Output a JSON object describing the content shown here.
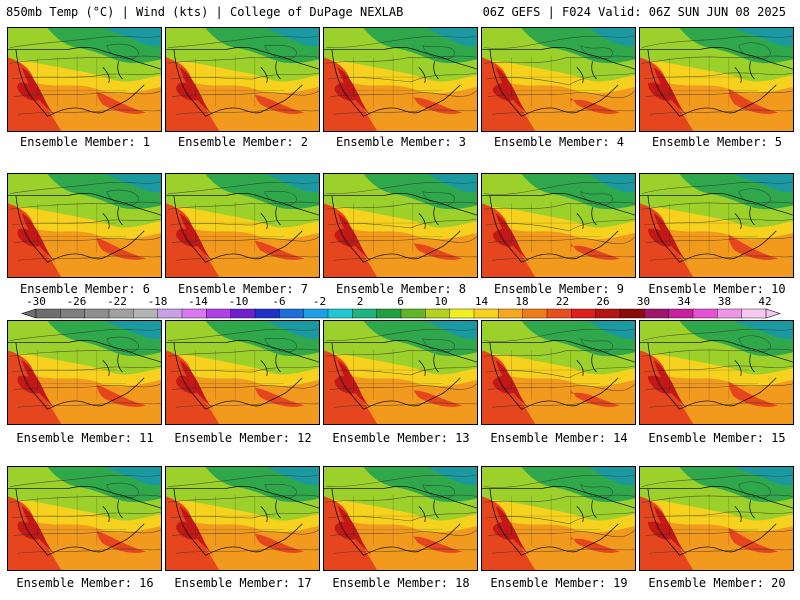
{
  "header": {
    "title_left": "850mb Temp (°C) | Wind (kts) | College of DuPage NEXLAB",
    "title_right": "06Z GEFS | F024 Valid: 06Z SUN JUN 08 2025"
  },
  "panels": [
    {
      "label": "Ensemble Member: 1"
    },
    {
      "label": "Ensemble Member: 2"
    },
    {
      "label": "Ensemble Member: 3"
    },
    {
      "label": "Ensemble Member: 4"
    },
    {
      "label": "Ensemble Member: 5"
    },
    {
      "label": "Ensemble Member: 6"
    },
    {
      "label": "Ensemble Member: 7"
    },
    {
      "label": "Ensemble Member: 8"
    },
    {
      "label": "Ensemble Member: 9"
    },
    {
      "label": "Ensemble Member: 10"
    },
    {
      "label": "Ensemble Member: 11"
    },
    {
      "label": "Ensemble Member: 12"
    },
    {
      "label": "Ensemble Member: 13"
    },
    {
      "label": "Ensemble Member: 14"
    },
    {
      "label": "Ensemble Member: 15"
    },
    {
      "label": "Ensemble Member: 16"
    },
    {
      "label": "Ensemble Member: 17"
    },
    {
      "label": "Ensemble Member: 18"
    },
    {
      "label": "Ensemble Member: 19"
    },
    {
      "label": "Ensemble Member: 20"
    }
  ],
  "colorbar": {
    "unit": "°C",
    "ticks": [
      "-30",
      "-26",
      "-22",
      "-18",
      "-14",
      "-10",
      "-6",
      "-2",
      "2",
      "6",
      "10",
      "14",
      "18",
      "22",
      "26",
      "30",
      "34",
      "38",
      "42"
    ],
    "colors": [
      "#6e6e6e",
      "#7e7e7e",
      "#8e8e8e",
      "#a0a0a0",
      "#b4b4b4",
      "#c8a0e6",
      "#dc78f0",
      "#b040e8",
      "#7020d0",
      "#2030c8",
      "#1e6edc",
      "#1ea0e6",
      "#20c8d2",
      "#20b482",
      "#20a040",
      "#64b428",
      "#b4d21e",
      "#f0f01e",
      "#f8d01e",
      "#f8a81e",
      "#f07c1e",
      "#e84e1e",
      "#e01e1e",
      "#b41414",
      "#8c0a0a",
      "#a0146e",
      "#c81ea0",
      "#e650d2",
      "#f096e6",
      "#f8c8f0"
    ]
  },
  "map": {
    "legend_colors": {
      "cold": "#1a9aa0",
      "cool": "#2ea84a",
      "mild": "#9cd02a",
      "warm": "#f6d21e",
      "hot": "#f29a1e",
      "very_hot": "#e6461e",
      "extreme": "#c21818"
    }
  }
}
